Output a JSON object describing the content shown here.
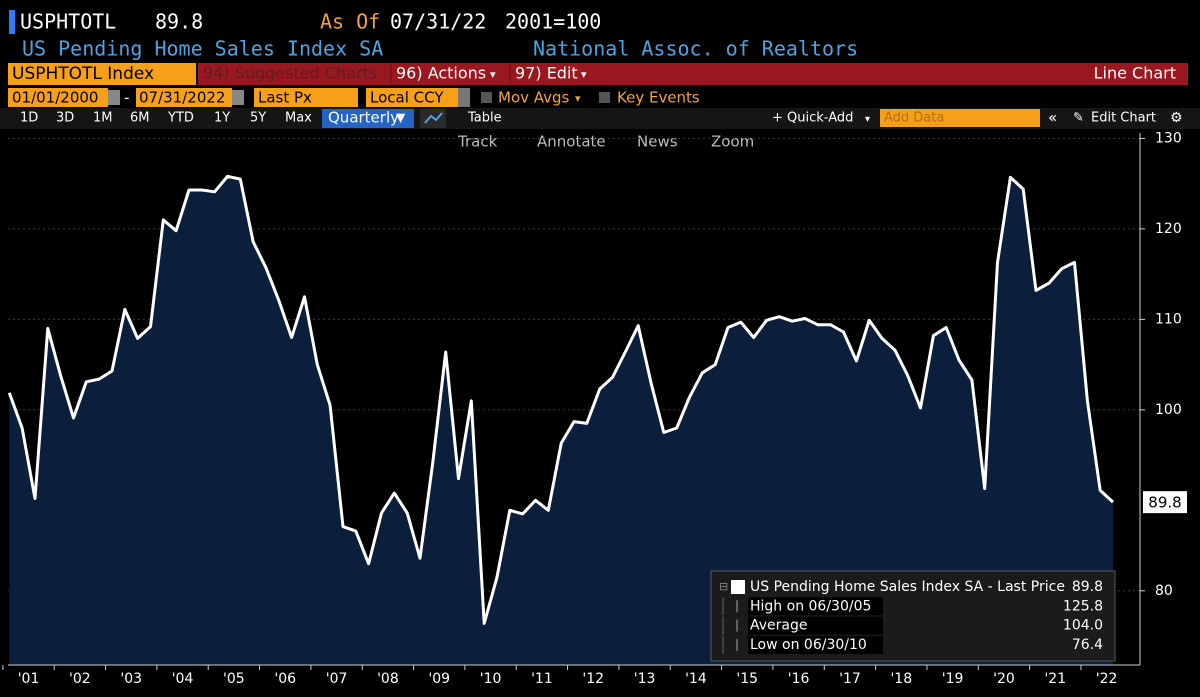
{
  "header": {
    "ticker": "USPHTOTL",
    "last_price": 89.8,
    "as_of_label": "As Of",
    "as_of_date": "07/31/22",
    "base": "2001=100",
    "name": "US Pending Home Sales Index SA",
    "source": "National Assoc. of Realtors"
  },
  "toolbar": {
    "security": "USPHTOTL Index",
    "menus": [
      "94) Suggested Charts",
      "96) Actions",
      "97) Edit"
    ],
    "chart_kind": "Line Chart",
    "start_date": "01/01/2000",
    "end_date": "07/31/2022",
    "field": "Last Px",
    "currency": "Local CCY",
    "toggles": [
      "Mov Avgs",
      "Key Events"
    ],
    "periods": [
      "1D",
      "3D",
      "1M",
      "6M",
      "YTD",
      "1Y",
      "5Y",
      "Max"
    ],
    "frequency": "Quarterly",
    "table": "Table",
    "quick_add": "+ Quick-Add",
    "add_data_placeholder": "Add Data",
    "edit_chart": "Edit Chart",
    "tools": [
      "Track",
      "Annotate",
      "News",
      "Zoom"
    ]
  },
  "chart_data": {
    "type": "line",
    "x": [
      2001.125,
      2001.375,
      2001.625,
      2001.875,
      2002.125,
      2002.375,
      2002.625,
      2002.875,
      2003.125,
      2003.375,
      2003.625,
      2003.875,
      2004.125,
      2004.375,
      2004.625,
      2004.875,
      2005.125,
      2005.375,
      2005.625,
      2005.875,
      2006.125,
      2006.375,
      2006.625,
      2006.875,
      2007.125,
      2007.375,
      2007.625,
      2007.875,
      2008.125,
      2008.375,
      2008.625,
      2008.875,
      2009.125,
      2009.375,
      2009.625,
      2009.875,
      2010.125,
      2010.375,
      2010.625,
      2010.875,
      2011.125,
      2011.375,
      2011.625,
      2011.875,
      2012.125,
      2012.375,
      2012.625,
      2012.875,
      2013.125,
      2013.375,
      2013.625,
      2013.875,
      2014.125,
      2014.375,
      2014.625,
      2014.875,
      2015.125,
      2015.375,
      2015.625,
      2015.875,
      2016.125,
      2016.375,
      2016.625,
      2016.875,
      2017.125,
      2017.375,
      2017.625,
      2017.875,
      2018.125,
      2018.375,
      2018.625,
      2018.875,
      2019.125,
      2019.375,
      2019.625,
      2019.875,
      2020.125,
      2020.375,
      2020.625,
      2020.875,
      2021.125,
      2021.375,
      2021.625,
      2021.875,
      2022.125,
      2022.375,
      2022.625
    ],
    "series": [
      {
        "name": "US Pending Home Sales Index SA - Last Price",
        "color": "#ffffff",
        "fill": "#0b1f3d",
        "values": [
          101.9,
          98.0,
          90.2,
          109.0,
          103.8,
          99.1,
          103.1,
          103.4,
          104.3,
          111.1,
          107.9,
          109.2,
          121.0,
          119.8,
          124.3,
          124.3,
          124.1,
          125.8,
          125.5,
          118.6,
          115.7,
          112.1,
          108.0,
          112.5,
          105.0,
          100.5,
          87.1,
          86.6,
          83.0,
          88.6,
          90.8,
          88.6,
          83.6,
          94.2,
          106.4,
          92.4,
          101.0,
          76.4,
          81.5,
          88.9,
          88.5,
          90.0,
          88.9,
          96.3,
          98.7,
          98.5,
          102.3,
          103.6,
          106.4,
          109.3,
          103.0,
          97.5,
          98.0,
          101.4,
          104.1,
          105.0,
          109.1,
          109.7,
          108.0,
          109.9,
          110.3,
          109.8,
          110.1,
          109.4,
          109.4,
          108.6,
          105.4,
          109.9,
          107.9,
          106.6,
          103.8,
          100.2,
          108.2,
          109.1,
          105.5,
          103.3,
          91.3,
          116.3,
          125.7,
          124.4,
          113.2,
          114.0,
          115.6,
          116.3,
          101.0,
          91.1,
          89.8
        ]
      }
    ],
    "xlim": [
      2001.1,
      2023.15
    ],
    "ylim": [
      71.8,
      130.6
    ],
    "yticks": [
      80,
      100,
      110,
      120,
      130
    ],
    "xticks": [
      {
        "value": 2001,
        "label": "'01"
      },
      {
        "value": 2002,
        "label": "'02"
      },
      {
        "value": 2003,
        "label": "'03"
      },
      {
        "value": 2004,
        "label": "'04"
      },
      {
        "value": 2005,
        "label": "'05"
      },
      {
        "value": 2006,
        "label": "'06"
      },
      {
        "value": 2007,
        "label": "'07"
      },
      {
        "value": 2008,
        "label": "'08"
      },
      {
        "value": 2009,
        "label": "'09"
      },
      {
        "value": 2010,
        "label": "'10"
      },
      {
        "value": 2011,
        "label": "'11"
      },
      {
        "value": 2012,
        "label": "'12"
      },
      {
        "value": 2013,
        "label": "'13"
      },
      {
        "value": 2014,
        "label": "'14"
      },
      {
        "value": 2015,
        "label": "'15"
      },
      {
        "value": 2016,
        "label": "'16"
      },
      {
        "value": 2017,
        "label": "'17"
      },
      {
        "value": 2018,
        "label": "'18"
      },
      {
        "value": 2019,
        "label": "'19"
      },
      {
        "value": 2020,
        "label": "'20"
      },
      {
        "value": 2021,
        "label": "'21"
      },
      {
        "value": 2022,
        "label": "'22"
      }
    ],
    "grid": true,
    "stats": [
      {
        "label": "High on 06/30/05",
        "value": 125.8
      },
      {
        "label": "Average",
        "value": 104,
        "value_label": "104.0"
      },
      {
        "label": "Low on 06/30/10",
        "value": 76.4
      }
    ]
  }
}
